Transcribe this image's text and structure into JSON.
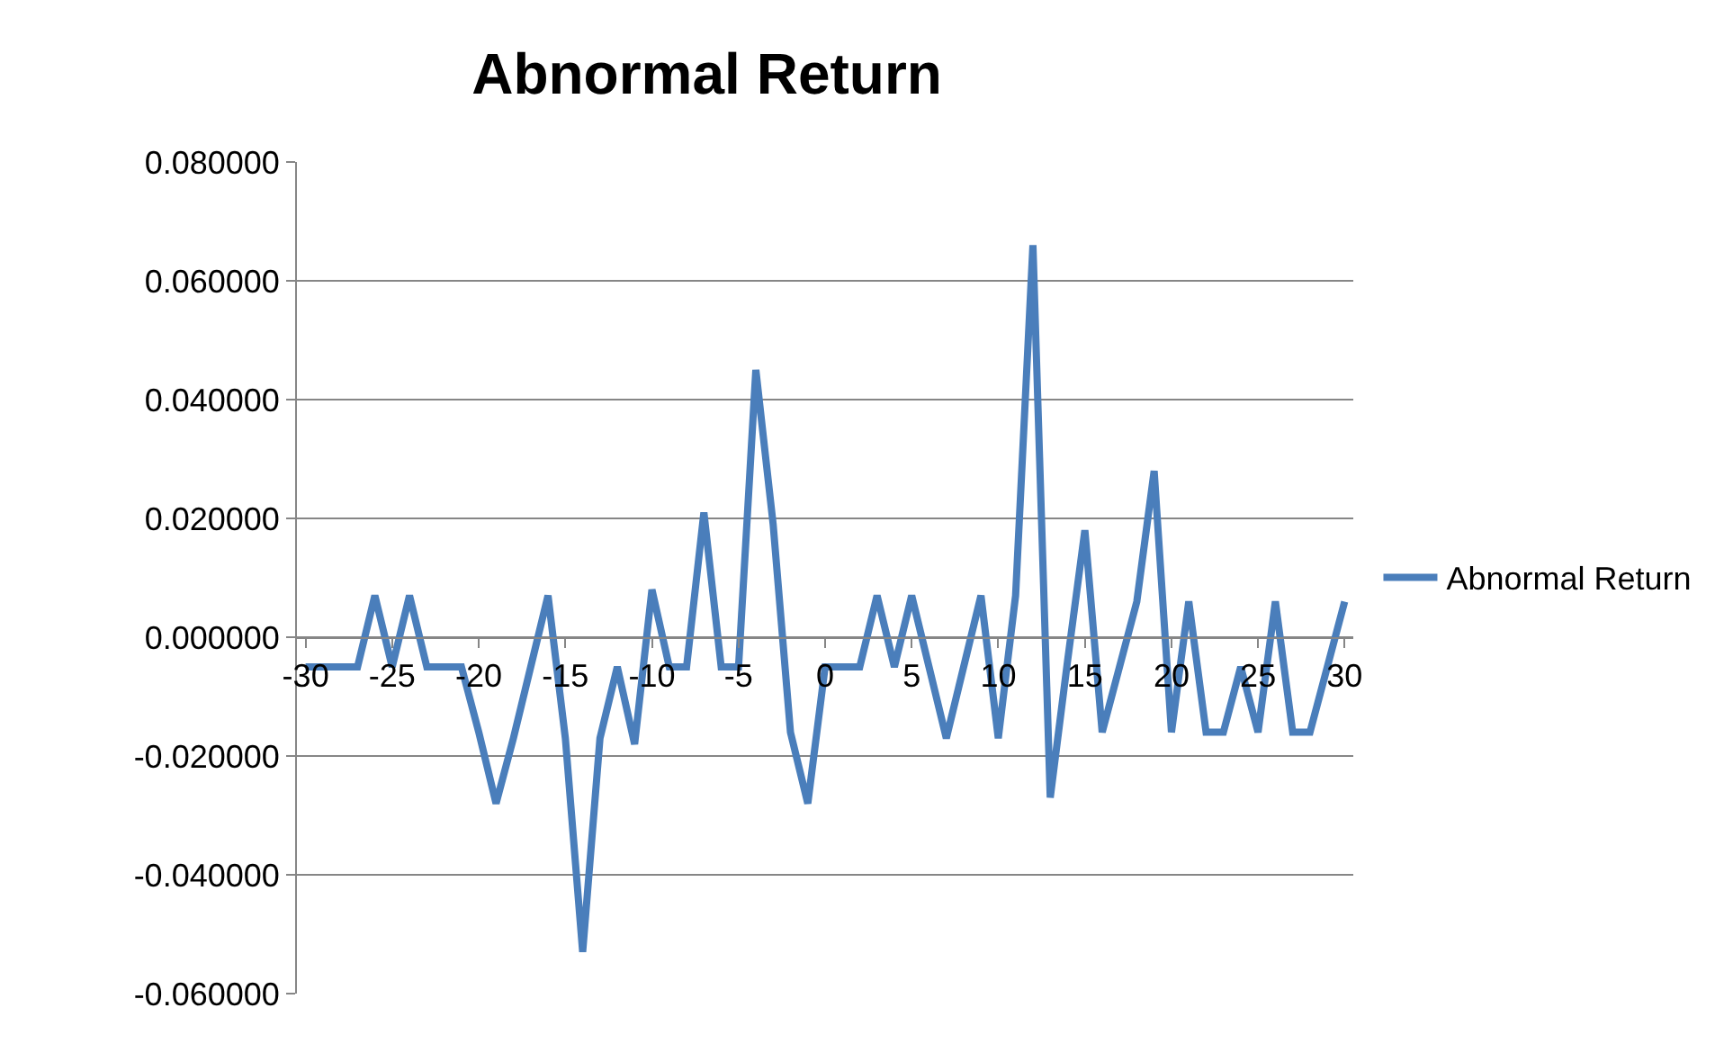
{
  "chart_data": {
    "type": "line",
    "title": "Abnormal Return",
    "categories": [
      "-30",
      null,
      null,
      null,
      null,
      "-25",
      null,
      null,
      null,
      null,
      "-20",
      null,
      null,
      null,
      null,
      "-15",
      null,
      null,
      null,
      null,
      "-10",
      null,
      null,
      null,
      null,
      "-5",
      null,
      null,
      null,
      null,
      "0",
      null,
      null,
      null,
      null,
      "5",
      null,
      null,
      null,
      null,
      "10",
      null,
      null,
      null,
      null,
      "15",
      null,
      null,
      null,
      null,
      "20",
      null,
      null,
      null,
      null,
      "25",
      null,
      null,
      null,
      null,
      "30"
    ],
    "series": [
      {
        "name": "Abnormal Return",
        "color": "#4a7ebb",
        "values": [
          -0.005,
          -0.005,
          -0.005,
          -0.005,
          0.007,
          -0.005,
          0.007,
          -0.005,
          -0.005,
          -0.005,
          -0.016,
          -0.028,
          -0.017,
          -0.005,
          0.007,
          -0.017,
          -0.053,
          -0.017,
          -0.005,
          -0.018,
          0.008,
          -0.005,
          -0.005,
          0.021,
          -0.005,
          -0.005,
          0.045,
          0.019,
          -0.016,
          -0.028,
          -0.005,
          -0.005,
          -0.005,
          0.007,
          -0.005,
          0.007,
          -0.005,
          -0.017,
          -0.005,
          0.007,
          -0.017,
          0.007,
          0.066,
          -0.027,
          -0.004,
          0.018,
          -0.016,
          -0.005,
          0.006,
          0.028,
          -0.016,
          0.006,
          -0.016,
          -0.016,
          -0.005,
          -0.016,
          0.006,
          -0.016,
          -0.016,
          -0.005,
          0.006
        ]
      }
    ],
    "ylim": [
      -0.06,
      0.08
    ],
    "yticks": [
      {
        "value": -0.06,
        "label": "-0.060000"
      },
      {
        "value": -0.04,
        "label": "-0.040000"
      },
      {
        "value": -0.02,
        "label": "-0.020000"
      },
      {
        "value": 0,
        "label": "0.000000"
      },
      {
        "value": 0.02,
        "label": "0.020000"
      },
      {
        "value": 0.04,
        "label": "0.040000"
      },
      {
        "value": 0.06,
        "label": "0.060000"
      },
      {
        "value": 0.08,
        "label": "0.080000"
      }
    ],
    "grid": "y",
    "legend": "right",
    "marker": "none",
    "line_style": "solid"
  }
}
